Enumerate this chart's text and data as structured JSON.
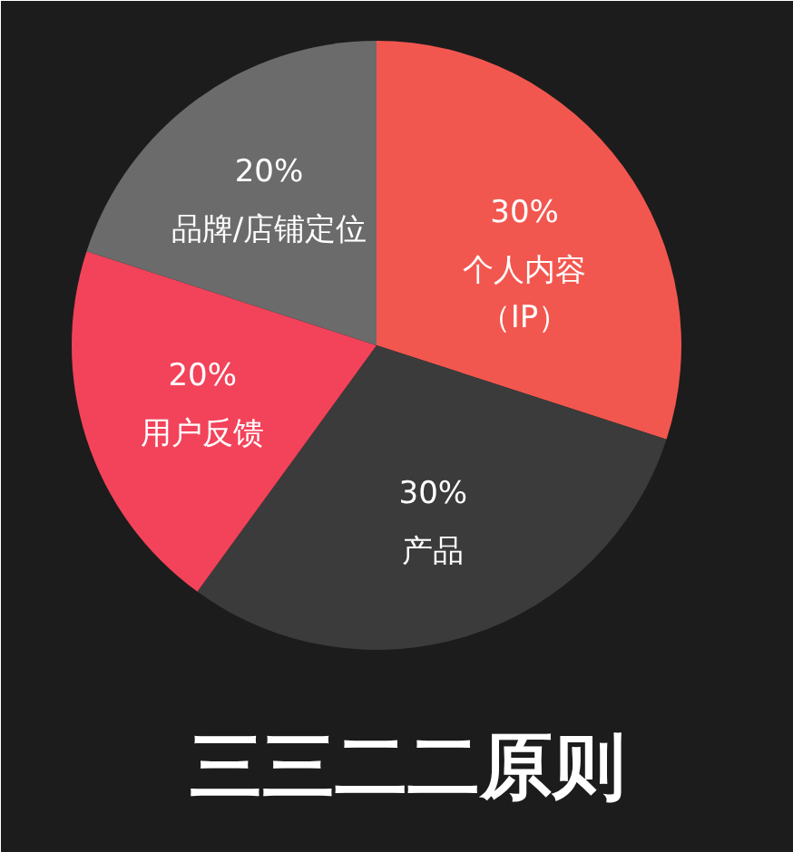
{
  "chart_data": {
    "type": "pie",
    "title": "三三二二原则",
    "categories": [
      "个人内容（IP）",
      "产品",
      "用户反馈",
      "品牌/店铺定位"
    ],
    "values": [
      30,
      30,
      20,
      20
    ],
    "value_labels": [
      "30%",
      "30%",
      "20%",
      "20%"
    ],
    "colors": [
      "#f2574f",
      "#3b3b3b",
      "#f2435a",
      "#6b6b6b"
    ],
    "legend": false
  }
}
